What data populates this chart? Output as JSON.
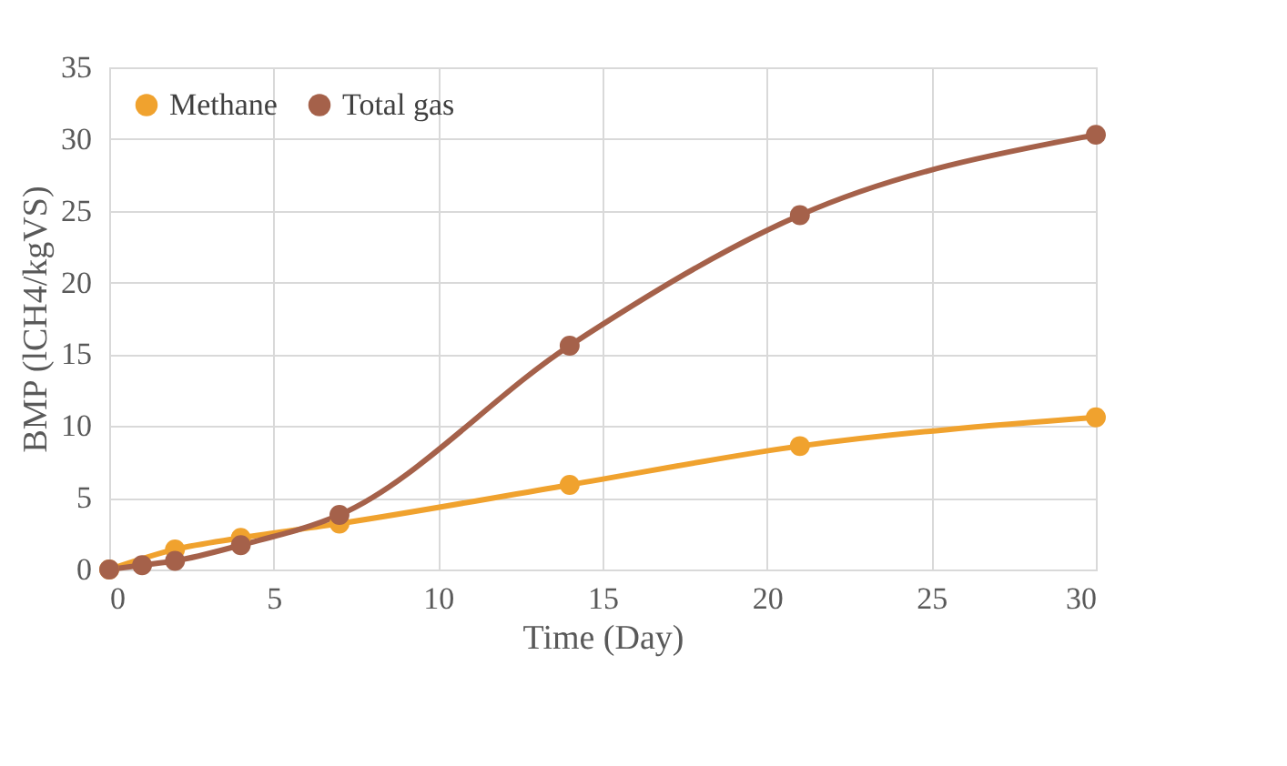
{
  "chart_data": {
    "type": "line",
    "xlabel": "Time (Day)",
    "ylabel": "BMP (lCH4/kgVS)",
    "x": [
      0,
      1,
      2,
      4,
      7,
      14,
      21,
      30
    ],
    "series": [
      {
        "name": "Methane",
        "color": "#f0a22e",
        "values": [
          0,
          null,
          1.4,
          2.2,
          3.2,
          5.9,
          8.6,
          10.6
        ]
      },
      {
        "name": "Total gas",
        "color": "#a5614a",
        "values": [
          0,
          0.3,
          0.6,
          1.7,
          3.8,
          15.6,
          24.7,
          30.3
        ]
      }
    ],
    "xlim": [
      0,
      30
    ],
    "xticks": [
      0,
      5,
      10,
      15,
      20,
      25,
      30
    ],
    "ylim": [
      0,
      35
    ],
    "yticks": [
      0,
      5,
      10,
      15,
      20,
      25,
      30,
      35
    ],
    "grid": true,
    "legend": "top left",
    "marker": "circle",
    "line_style": "solid"
  }
}
